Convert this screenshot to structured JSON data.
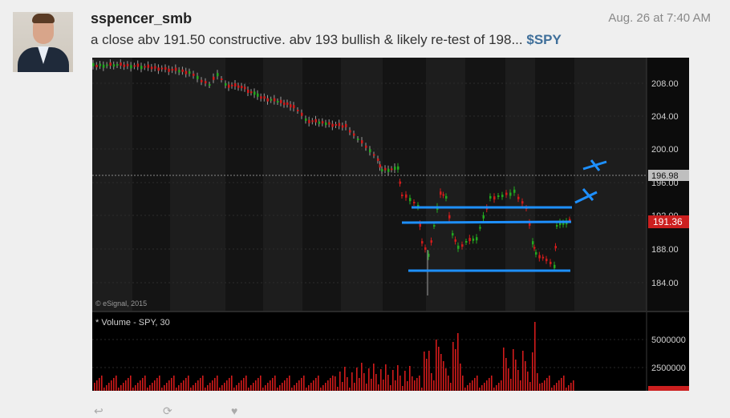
{
  "post": {
    "username": "sspencer_smb",
    "timestamp": "Aug. 26 at 7:40 AM",
    "message_text": "a close abv 191.50 constructive. abv 193 bullish & likely re-test of 198...",
    "ticker": "$SPY"
  },
  "icons": {
    "avatar": "user-avatar-photo",
    "reply": "reply-icon",
    "reshare": "reshare-icon",
    "like": "like-icon"
  },
  "chart": {
    "watermark": "© eSignal, 2015",
    "volume_label": "* Volume - SPY, 30",
    "current_price": "191.36",
    "reference_price": "196.98",
    "price_ticks": [
      "208.00",
      "204.00",
      "200.00",
      "196.00",
      "192.00",
      "188.00",
      "184.00"
    ],
    "volume_ticks": [
      "5000000",
      "2500000"
    ]
  },
  "colors": {
    "up_candle": "#23a81f",
    "down_candle": "#d11b1b",
    "annotation": "#1e90ff",
    "price_flag": "#cc1f1f",
    "ticker": "#3f6f9a"
  },
  "chart_data": {
    "type": "candlestick",
    "title": "",
    "series": [
      {
        "name": "price",
        "y_range": [
          182,
          211
        ]
      },
      {
        "name": "Volume - SPY, 30",
        "y_range": [
          0,
          6000000
        ]
      }
    ],
    "annotations": {
      "support_resistance_lines": [
        185.5,
        191.6,
        193.0
      ],
      "reference_level": 196.98,
      "current_price": 191.36
    },
    "grid": true
  }
}
